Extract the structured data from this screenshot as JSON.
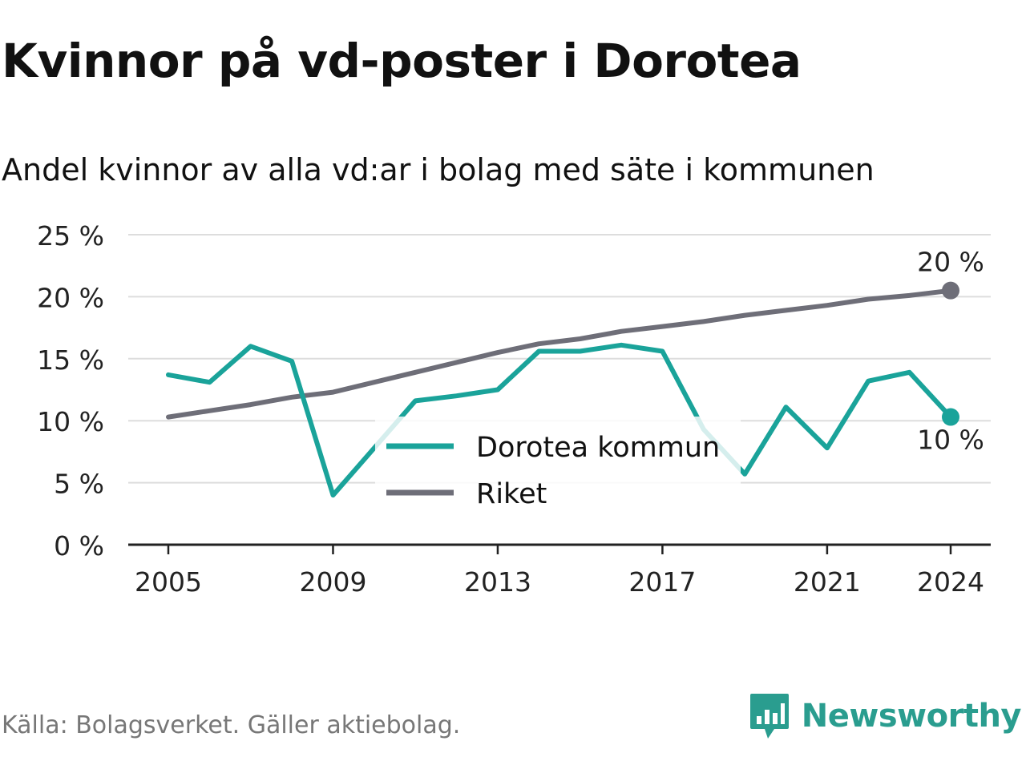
{
  "title": "Kvinnor på vd-poster i Dorotea",
  "subtitle": "Andel kvinnor av alla vd:ar i bolag med säte i kommunen",
  "source": "Källa: Bolagsverket. Gäller aktiebolag.",
  "brand": "Newsworthy",
  "colors": {
    "dorotea": "#1aa39a",
    "riket": "#6e6e78",
    "grid": "#dddddd",
    "axis": "#222222",
    "brand": "#2a9d8f"
  },
  "chart_data": {
    "type": "line",
    "x": [
      2005,
      2006,
      2007,
      2008,
      2009,
      2010,
      2011,
      2012,
      2013,
      2014,
      2015,
      2016,
      2017,
      2018,
      2019,
      2020,
      2021,
      2022,
      2023,
      2024
    ],
    "series": [
      {
        "name": "Dorotea kommun",
        "color": "#1aa39a",
        "values": [
          13.7,
          13.1,
          16.0,
          14.8,
          4.0,
          7.8,
          11.6,
          12.0,
          12.5,
          15.6,
          15.6,
          16.1,
          15.6,
          9.3,
          5.7,
          11.1,
          7.8,
          13.2,
          13.9,
          10.3
        ],
        "end_label": "10 %"
      },
      {
        "name": "Riket",
        "color": "#6e6e78",
        "values": [
          10.3,
          10.8,
          11.3,
          11.9,
          12.3,
          13.1,
          13.9,
          14.7,
          15.5,
          16.2,
          16.6,
          17.2,
          17.6,
          18.0,
          18.5,
          18.9,
          19.3,
          19.8,
          20.1,
          20.5
        ],
        "end_label": "20 %"
      }
    ],
    "xticks": [
      "2005",
      "2009",
      "2013",
      "2017",
      "2021",
      "2024"
    ],
    "yticks": [
      "0 %",
      "5 %",
      "10 %",
      "15 %",
      "20 %",
      "25 %"
    ],
    "ylim": [
      0,
      25
    ],
    "grid": true,
    "legend_position": "center"
  }
}
